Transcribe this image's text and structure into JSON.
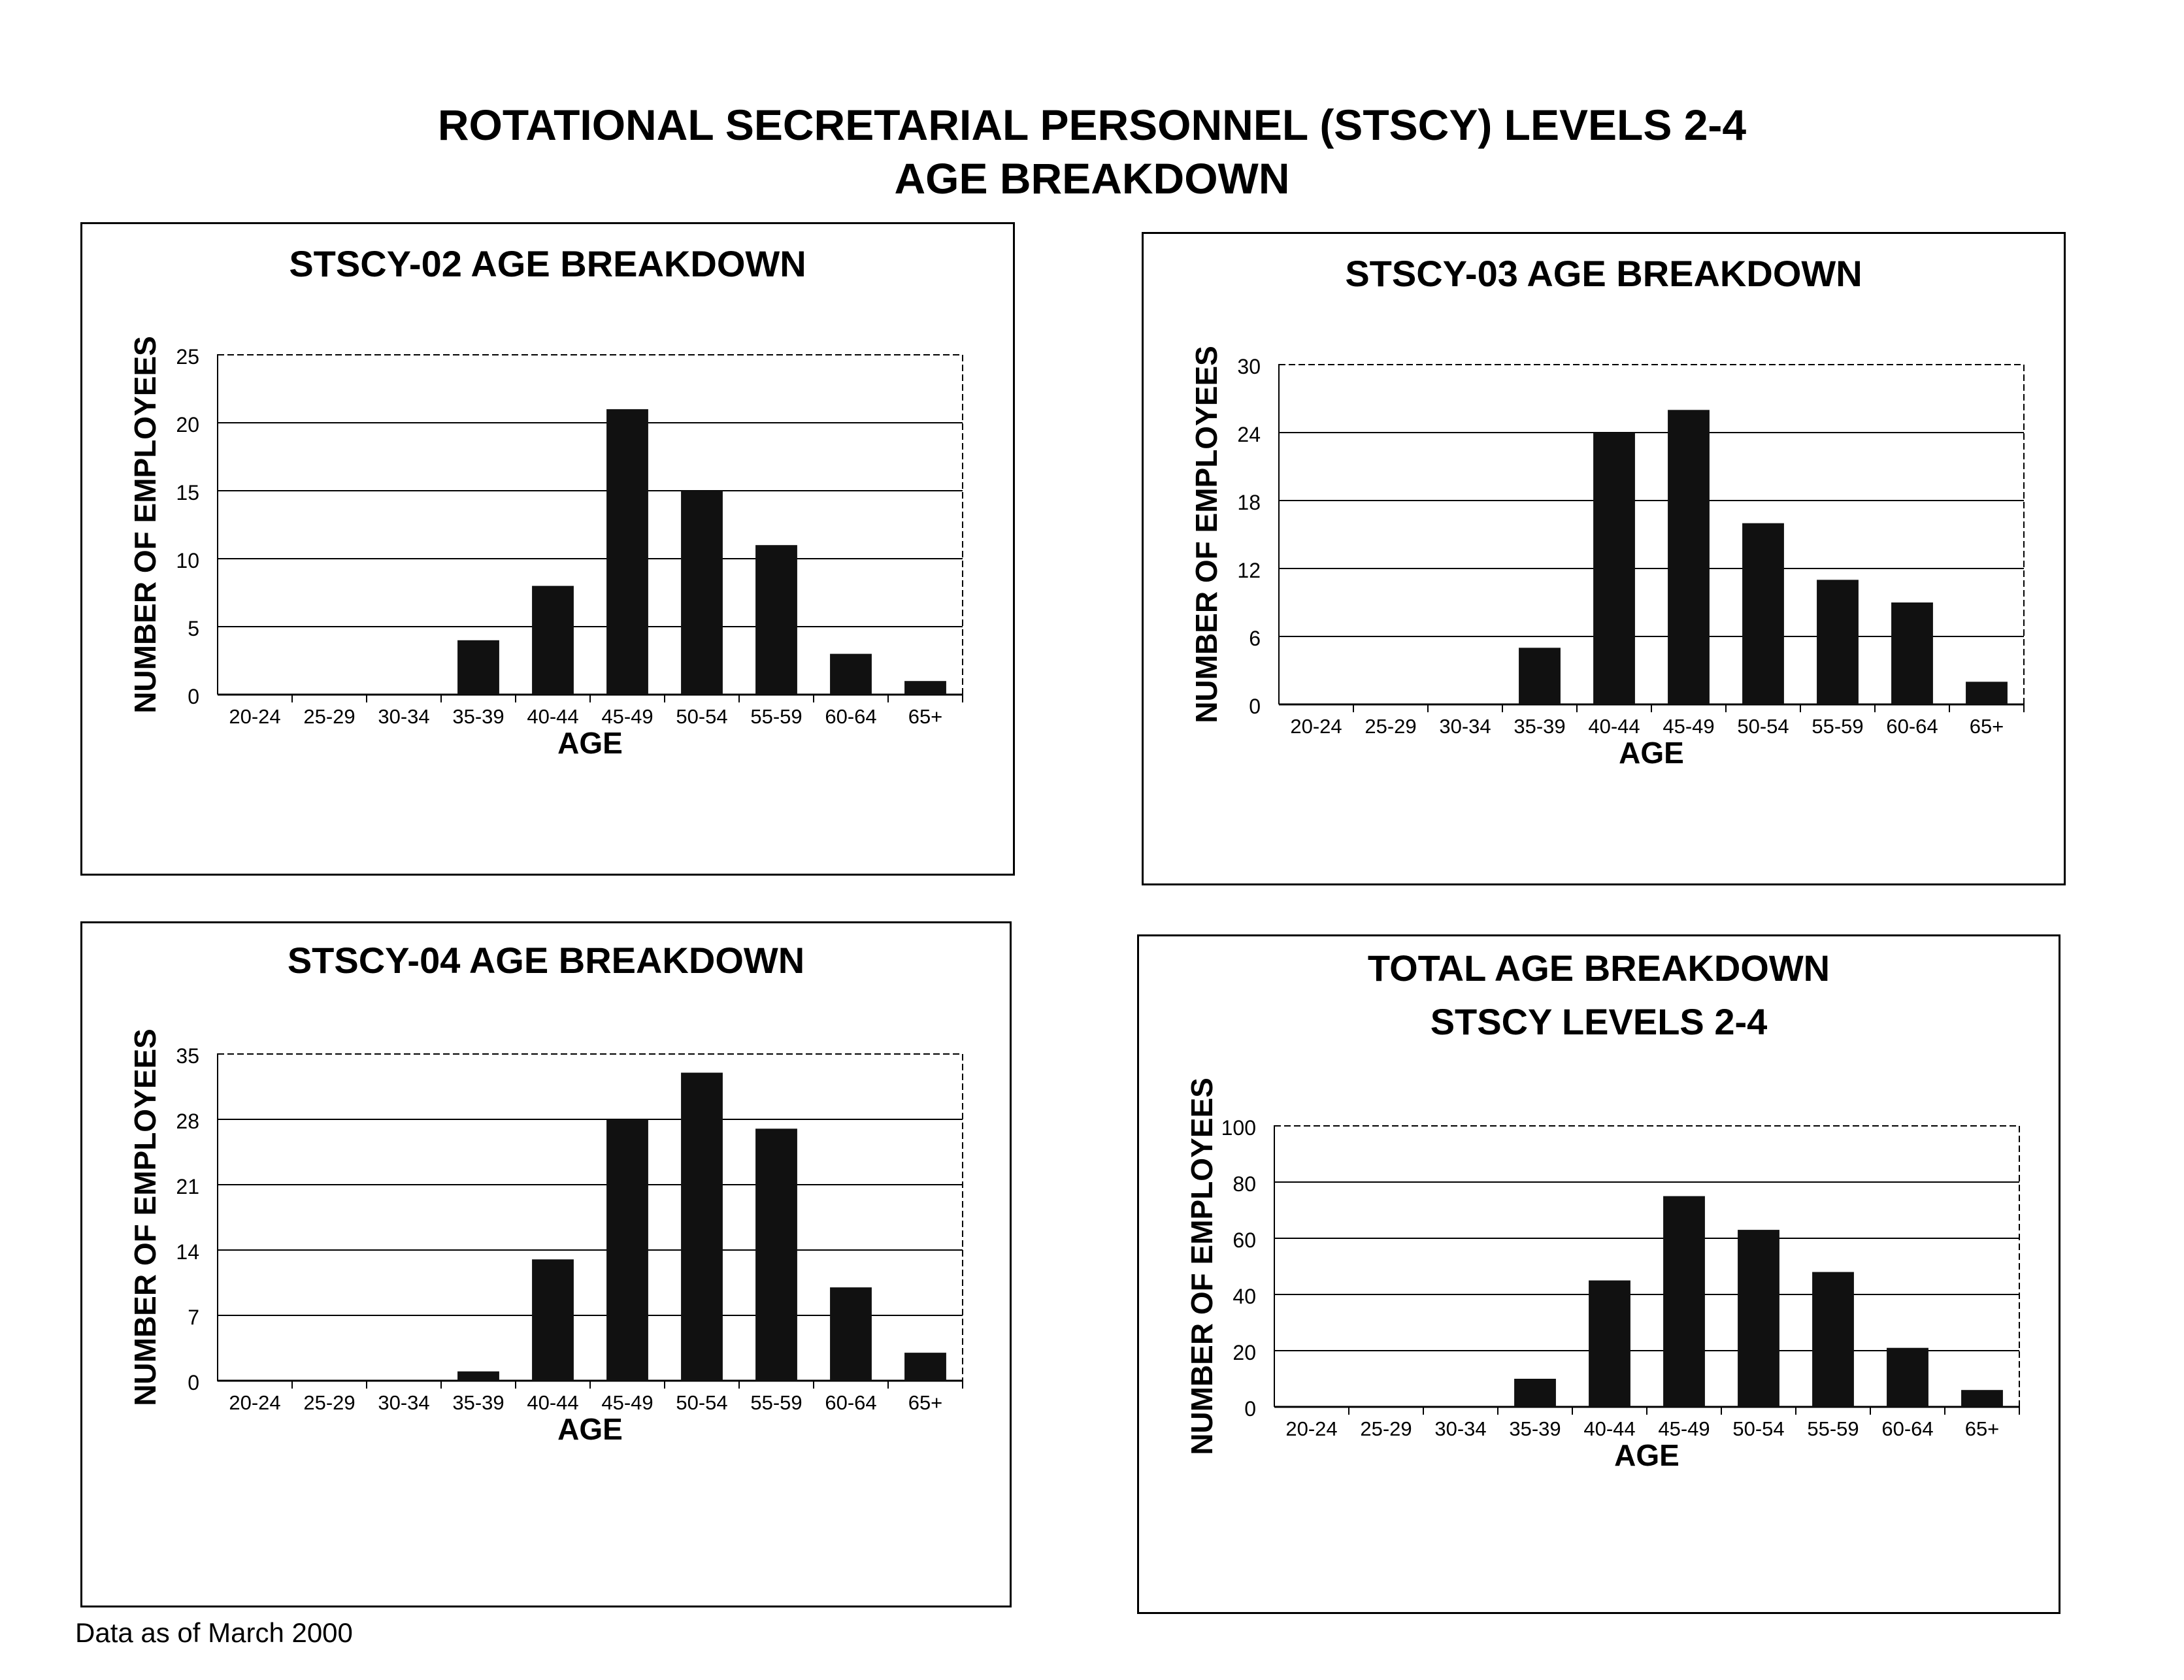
{
  "page": {
    "title_line1": "ROTATIONAL SECRETARIAL PERSONNEL (STSCY) LEVELS 2-4",
    "title_line2": "AGE BREAKDOWN",
    "footnote": "Data as of March 2000"
  },
  "chart_data": [
    {
      "type": "bar",
      "title": "STSCY-02 AGE BREAKDOWN",
      "xlabel": "AGE",
      "ylabel": "NUMBER OF EMPLOYEES",
      "categories": [
        "20-24",
        "25-29",
        "30-34",
        "35-39",
        "40-44",
        "45-49",
        "50-54",
        "55-59",
        "60-64",
        "65+"
      ],
      "values": [
        0,
        0,
        0,
        4,
        8,
        21,
        15,
        11,
        3,
        1
      ],
      "ylim": [
        0,
        25
      ],
      "yticks": [
        0,
        5,
        10,
        15,
        20,
        25
      ],
      "grid": true,
      "color": "#111111"
    },
    {
      "type": "bar",
      "title": "STSCY-03 AGE BREAKDOWN",
      "xlabel": "AGE",
      "ylabel": "NUMBER OF EMPLOYEES",
      "categories": [
        "20-24",
        "25-29",
        "30-34",
        "35-39",
        "40-44",
        "45-49",
        "50-54",
        "55-59",
        "60-64",
        "65+"
      ],
      "values": [
        0,
        0,
        0,
        5,
        24,
        26,
        16,
        11,
        9,
        2
      ],
      "ylim": [
        0,
        30
      ],
      "yticks": [
        0,
        6,
        12,
        18,
        24,
        30
      ],
      "grid": true,
      "color": "#111111"
    },
    {
      "type": "bar",
      "title": "STSCY-04 AGE BREAKDOWN",
      "xlabel": "AGE",
      "ylabel": "NUMBER OF EMPLOYEES",
      "categories": [
        "20-24",
        "25-29",
        "30-34",
        "35-39",
        "40-44",
        "45-49",
        "50-54",
        "55-59",
        "60-64",
        "65+"
      ],
      "values": [
        0,
        0,
        0,
        1,
        13,
        28,
        33,
        27,
        10,
        3
      ],
      "ylim": [
        0,
        35
      ],
      "yticks": [
        0,
        7,
        14,
        21,
        28,
        35
      ],
      "grid": true,
      "color": "#111111"
    },
    {
      "type": "bar",
      "title": "TOTAL AGE BREAKDOWN",
      "subtitle": "STSCY LEVELS 2-4",
      "xlabel": "AGE",
      "ylabel": "NUMBER OF EMPLOYEES",
      "categories": [
        "20-24",
        "25-29",
        "30-34",
        "35-39",
        "40-44",
        "45-49",
        "50-54",
        "55-59",
        "60-64",
        "65+"
      ],
      "values": [
        0,
        0,
        0,
        10,
        45,
        75,
        63,
        48,
        21,
        6
      ],
      "ylim": [
        0,
        100
      ],
      "yticks": [
        0,
        20,
        40,
        60,
        80,
        100
      ],
      "grid": true,
      "color": "#111111"
    }
  ]
}
